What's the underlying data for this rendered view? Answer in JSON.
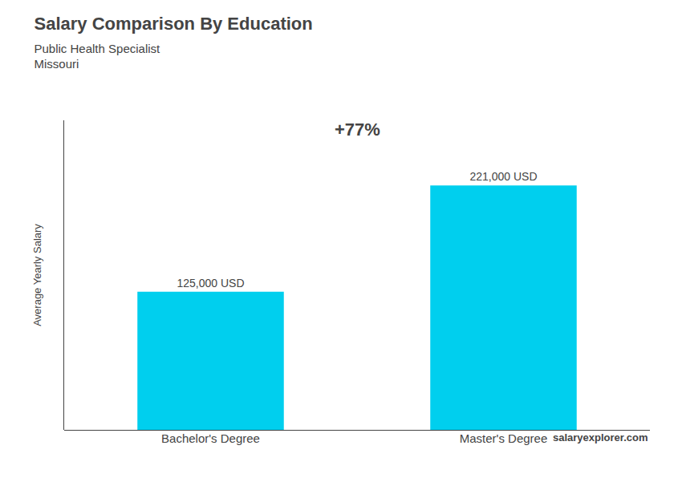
{
  "chart_data": {
    "type": "bar",
    "title": "Salary Comparison By Education",
    "subtitle": [
      "Public Health Specialist",
      "Missouri"
    ],
    "categories": [
      "Bachelor's Degree",
      "Master's Degree"
    ],
    "values": [
      125000,
      221000
    ],
    "value_labels": [
      "125,000 USD",
      "221,000 USD"
    ],
    "data_labels": true,
    "color": "#00cfee",
    "ylabel": "Average Yearly Salary",
    "ylim": [
      0,
      280000
    ],
    "tick_labels": "x",
    "grid": false,
    "annotations": [
      "+77%",
      "salary",
      "explorer.com"
    ]
  }
}
